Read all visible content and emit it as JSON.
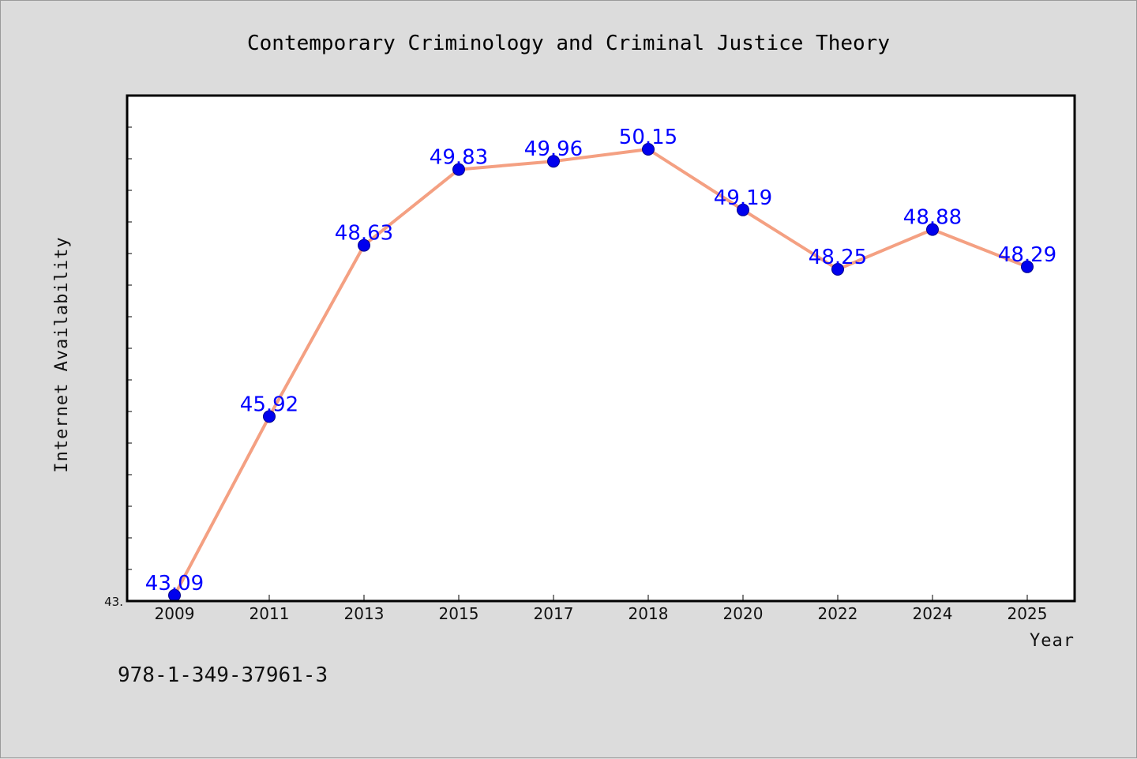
{
  "chart_data": {
    "type": "line",
    "title": "Contemporary Criminology and Criminal Justice Theory",
    "xlabel": "Year",
    "ylabel": "Internet Availability",
    "categories": [
      "2009",
      "2011",
      "2013",
      "2015",
      "2017",
      "2018",
      "2020",
      "2022",
      "2024",
      "2025"
    ],
    "series": [
      {
        "values": [
          43.09,
          45.92,
          48.63,
          49.83,
          49.96,
          50.15,
          49.19,
          48.25,
          48.88,
          48.29
        ],
        "labels": [
          "43.09",
          "45.92",
          "48.63",
          "49.83",
          "49.96",
          "50.15",
          "49.19",
          "48.25",
          "48.88",
          "48.29"
        ],
        "line_color": "#f4a082",
        "marker_color": "#0000ee"
      }
    ],
    "ylim": [
      43.0,
      51.0
    ],
    "y_tick_label": "43.",
    "grid": false,
    "legend": "none",
    "label_color": "#0000ff"
  },
  "footer": {
    "isbn": "978-1-349-37961-3"
  }
}
